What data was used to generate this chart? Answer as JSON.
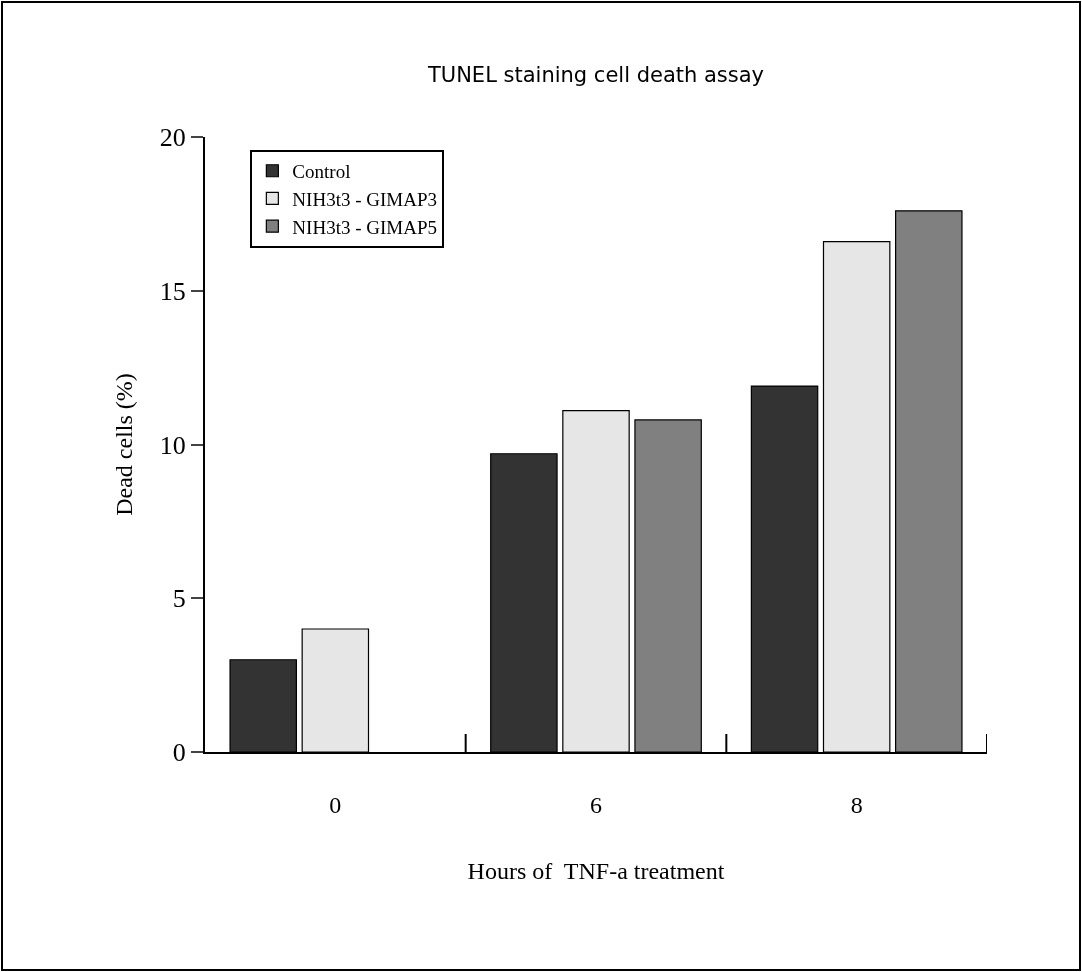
{
  "chart_data": {
    "type": "bar",
    "title": "TUNEL staining cell death assay",
    "xlabel": "Hours of  TNF-a treatment",
    "ylabel": "Dead cells (%)",
    "categories": [
      "0",
      "6",
      "8"
    ],
    "series": [
      {
        "name": "Control",
        "color": "#333333",
        "values": [
          3,
          9.7,
          11.9
        ]
      },
      {
        "name": "NIH3t3 - GIMAP3",
        "color": "#e6e6e6",
        "values": [
          4,
          11.1,
          16.6
        ]
      },
      {
        "name": "NIH3t3 - GIMAP5",
        "color": "#808080",
        "values": [
          null,
          10.8,
          17.6
        ]
      }
    ],
    "ylim": [
      0,
      20
    ],
    "yticks": [
      0,
      5,
      10,
      15,
      20
    ],
    "legend": "top left"
  }
}
